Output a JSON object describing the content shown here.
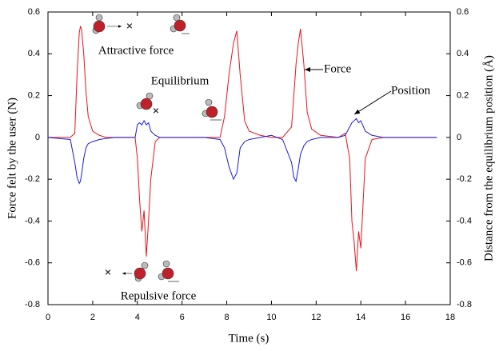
{
  "chart_data": {
    "type": "line",
    "x_label": "Time (s)",
    "y_label": "Force felt by the user (N)",
    "y2_label": "Distance from the equilibrium position (Å)",
    "annotations": [
      "Attractive force",
      "Equilibrium",
      "Repulsive force",
      "Force",
      "Position"
    ],
    "x": [
      0,
      1.0,
      1.2,
      1.3,
      1.4,
      1.45,
      1.5,
      1.6,
      1.7,
      1.8,
      2.0,
      2.3,
      2.6,
      3.0,
      3.5,
      3.9,
      4.0,
      4.1,
      4.2,
      4.3,
      4.4,
      4.5,
      4.6,
      4.8,
      5.0,
      6.0,
      7.0,
      7.7,
      7.9,
      8.1,
      8.3,
      8.45,
      8.6,
      8.8,
      9.0,
      9.5,
      10.0,
      10.5,
      10.9,
      11.0,
      11.1,
      11.2,
      11.3,
      11.45,
      11.6,
      11.8,
      12.2,
      13.0,
      13.3,
      13.5,
      13.6,
      13.7,
      13.8,
      13.9,
      14.0,
      14.2,
      14.5,
      15.0,
      16.0,
      17.4
    ],
    "series": [
      {
        "color": "#e8141c",
        "values": [
          0,
          0,
          0.02,
          0.3,
          0.5,
          0.53,
          0.52,
          0.4,
          0.22,
          0.1,
          0.03,
          0.01,
          0,
          0,
          0,
          0,
          -0.1,
          -0.3,
          -0.45,
          -0.35,
          -0.57,
          -0.4,
          -0.2,
          -0.02,
          0,
          0,
          0,
          0,
          0.1,
          0.3,
          0.45,
          0.51,
          0.3,
          0.08,
          0.03,
          0.01,
          0,
          0,
          0.05,
          0.2,
          0.35,
          0.45,
          0.52,
          0.35,
          0.12,
          0.04,
          0.01,
          0,
          0.02,
          -0.1,
          -0.4,
          -0.5,
          -0.64,
          -0.45,
          -0.53,
          -0.1,
          -0.01,
          0,
          0,
          0
        ]
      },
      {
        "color": "#1a1adc",
        "axis": "y2",
        "values": [
          0,
          -0.01,
          -0.12,
          -0.19,
          -0.22,
          -0.21,
          -0.18,
          -0.1,
          -0.05,
          -0.03,
          -0.02,
          -0.01,
          -0.005,
          0,
          0,
          0,
          0.06,
          0.07,
          0.06,
          0.08,
          0.06,
          0.07,
          0.03,
          0.01,
          0,
          0,
          0,
          -0.01,
          -0.05,
          -0.14,
          -0.2,
          -0.17,
          -0.05,
          -0.02,
          -0.01,
          0,
          0.01,
          -0.01,
          -0.12,
          -0.19,
          -0.21,
          -0.15,
          -0.08,
          -0.04,
          -0.02,
          -0.01,
          0,
          0,
          0.01,
          0.05,
          0.07,
          0.08,
          0.09,
          0.07,
          0.08,
          0.03,
          0.01,
          0,
          0,
          0
        ]
      }
    ],
    "xlim": [
      0,
      18
    ],
    "xticks": [
      0,
      2,
      4,
      6,
      8,
      10,
      12,
      14,
      16,
      18
    ],
    "ylim": [
      -0.8,
      0.6
    ],
    "yticks": [
      -0.8,
      -0.6,
      -0.4,
      -0.2,
      0,
      0.2,
      0.4,
      0.6
    ],
    "y2lim": [
      -0.8,
      0.6
    ],
    "y2ticks": [
      -0.8,
      -0.6,
      -0.4,
      -0.2,
      0,
      0.2,
      0.4,
      0.6
    ]
  }
}
